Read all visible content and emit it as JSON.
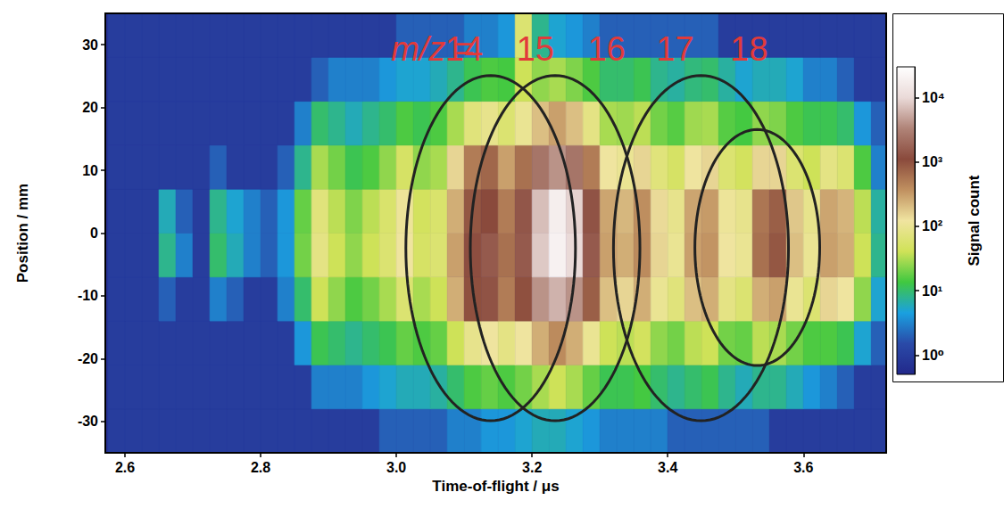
{
  "chart_data": {
    "type": "heatmap",
    "x_label": "Time-of-flight / μs",
    "y_label": "Position / mm",
    "xlim": [
      2.571,
      3.722
    ],
    "ylim": [
      -35,
      35
    ],
    "xticks": [
      2.6,
      2.8,
      {
        "value": 3,
        "label": "3.0"
      },
      3.2,
      3.4,
      3.6
    ],
    "yticks": [
      -30,
      -20,
      -10,
      0,
      10,
      20,
      30
    ],
    "x": [
      2.5875,
      2.6125,
      2.6375,
      2.6625,
      2.6875,
      2.7125,
      2.7375,
      2.7625,
      2.7875,
      2.8125,
      2.8375,
      2.8625,
      2.8875,
      2.9125,
      2.9375,
      2.9625,
      2.9875,
      3.0125,
      3.0375,
      3.0625,
      3.0875,
      3.1125,
      3.1375,
      3.1625,
      3.1875,
      3.2125,
      3.2375,
      3.2625,
      3.2875,
      3.3125,
      3.3375,
      3.3625,
      3.3875,
      3.4125,
      3.4375,
      3.4625,
      3.4875,
      3.5125,
      3.5375,
      3.5625,
      3.5875,
      3.6125,
      3.6375,
      3.6625,
      3.6875,
      3.7125
    ],
    "y": [
      -31.5,
      -24.5,
      -17.5,
      -10.5,
      -3.5,
      3.5,
      10.5,
      17.5,
      24.5,
      31.5
    ],
    "z": [
      [
        1,
        1,
        1,
        1,
        1,
        1,
        1,
        1,
        1,
        1,
        1,
        1,
        1,
        1,
        1,
        1,
        2,
        2,
        2,
        2,
        3,
        3,
        4,
        4,
        5,
        6,
        6,
        5,
        4,
        3,
        3,
        3,
        3,
        2,
        2,
        2,
        2,
        2,
        2,
        1,
        1,
        1,
        1,
        1,
        1,
        1
      ],
      [
        1,
        1,
        1,
        1,
        1,
        1,
        1,
        1,
        1,
        1,
        1,
        1,
        3,
        3,
        3,
        4,
        5,
        6,
        6,
        7,
        10,
        15,
        18,
        15,
        20,
        30,
        40,
        30,
        18,
        12,
        12,
        14,
        10,
        8,
        10,
        12,
        8,
        6,
        8,
        8,
        6,
        4,
        3,
        2,
        1,
        1
      ],
      [
        1,
        1,
        1,
        1,
        1,
        1,
        1,
        1,
        1,
        1,
        1,
        4,
        12,
        10,
        8,
        10,
        12,
        18,
        15,
        18,
        40,
        90,
        120,
        80,
        120,
        250,
        400,
        250,
        100,
        40,
        35,
        45,
        25,
        20,
        35,
        40,
        20,
        18,
        35,
        30,
        20,
        15,
        15,
        12,
        5,
        2
      ],
      [
        1,
        1,
        1,
        2,
        1,
        1,
        3,
        2,
        1,
        1,
        3,
        10,
        40,
        25,
        15,
        20,
        30,
        60,
        30,
        40,
        250,
        1000,
        1300,
        500,
        1000,
        4000,
        6000,
        4000,
        800,
        200,
        150,
        250,
        100,
        70,
        200,
        250,
        80,
        60,
        250,
        300,
        100,
        60,
        150,
        120,
        25,
        5
      ],
      [
        1,
        1,
        1,
        8,
        3,
        1,
        10,
        6,
        3,
        2,
        4,
        20,
        80,
        40,
        25,
        40,
        60,
        120,
        50,
        60,
        300,
        1200,
        1500,
        600,
        1500,
        8000,
        20000,
        10000,
        1500,
        300,
        250,
        400,
        150,
        100,
        300,
        350,
        120,
        100,
        600,
        900,
        200,
        100,
        300,
        250,
        40,
        8
      ],
      [
        1,
        1,
        1,
        6,
        2,
        1,
        8,
        5,
        3,
        2,
        4,
        18,
        70,
        35,
        22,
        35,
        55,
        110,
        45,
        55,
        250,
        900,
        1100,
        500,
        1400,
        7000,
        18000,
        9000,
        1300,
        280,
        220,
        380,
        140,
        90,
        280,
        320,
        110,
        90,
        550,
        800,
        180,
        90,
        280,
        230,
        35,
        7
      ],
      [
        1,
        1,
        1,
        1,
        1,
        1,
        2,
        1,
        1,
        1,
        2,
        8,
        30,
        20,
        12,
        15,
        25,
        50,
        25,
        30,
        150,
        500,
        700,
        300,
        600,
        2500,
        4000,
        2500,
        500,
        120,
        100,
        150,
        70,
        50,
        120,
        150,
        60,
        45,
        150,
        150,
        60,
        40,
        80,
        60,
        15,
        3
      ],
      [
        1,
        1,
        1,
        1,
        1,
        1,
        1,
        1,
        1,
        1,
        1,
        3,
        10,
        8,
        6,
        8,
        10,
        15,
        12,
        15,
        30,
        70,
        90,
        60,
        100,
        200,
        300,
        200,
        80,
        30,
        28,
        35,
        20,
        16,
        28,
        30,
        16,
        14,
        25,
        22,
        15,
        12,
        12,
        10,
        4,
        2
      ],
      [
        1,
        1,
        1,
        1,
        1,
        1,
        1,
        1,
        1,
        1,
        1,
        1,
        2,
        3,
        3,
        3,
        4,
        5,
        5,
        6,
        8,
        12,
        15,
        14,
        40,
        25,
        30,
        22,
        15,
        10,
        10,
        12,
        8,
        7,
        9,
        10,
        7,
        5,
        6,
        6,
        5,
        3,
        3,
        2,
        1,
        1
      ],
      [
        1,
        1,
        1,
        1,
        1,
        1,
        1,
        1,
        1,
        1,
        1,
        1,
        1,
        1,
        1,
        1,
        1,
        2,
        2,
        2,
        2,
        3,
        3,
        4,
        60,
        8,
        5,
        4,
        3,
        2,
        2,
        2,
        2,
        2,
        2,
        2,
        1,
        1,
        1,
        1,
        1,
        1,
        1,
        1,
        1,
        1
      ]
    ],
    "colorbar": {
      "label": "Signal count",
      "log": true,
      "range": [
        0.5,
        30000
      ],
      "ticks": [
        {
          "value": 1,
          "label": "10⁰"
        },
        {
          "value": 10,
          "label": "10¹"
        },
        {
          "value": 100,
          "label": "10²"
        },
        {
          "value": 1000,
          "label": "10³"
        },
        {
          "value": 10000,
          "label": "10⁴"
        }
      ]
    },
    "annotations": [
      {
        "text": "m/z =",
        "x": 3.054,
        "y": 29.3
      },
      {
        "text": "14",
        "x": 3.1,
        "y": 29.3
      },
      {
        "text": "15",
        "x": 3.205,
        "y": 29.3
      },
      {
        "text": "16",
        "x": 3.31,
        "y": 29.3
      },
      {
        "text": "17",
        "x": 3.411,
        "y": 29.3
      },
      {
        "text": "18",
        "x": 3.52,
        "y": 29.3
      }
    ],
    "ellipses": [
      {
        "cx": 3.139,
        "cy": -2.4,
        "rx": 0.125,
        "ry": 27.5
      },
      {
        "cx": 3.234,
        "cy": -2.4,
        "rx": 0.125,
        "ry": 27.5
      },
      {
        "cx": 3.449,
        "cy": -2.4,
        "rx": 0.129,
        "ry": 27.5
      },
      {
        "cx": 3.532,
        "cy": -2.3,
        "rx": 0.092,
        "ry": 18.8
      }
    ]
  }
}
